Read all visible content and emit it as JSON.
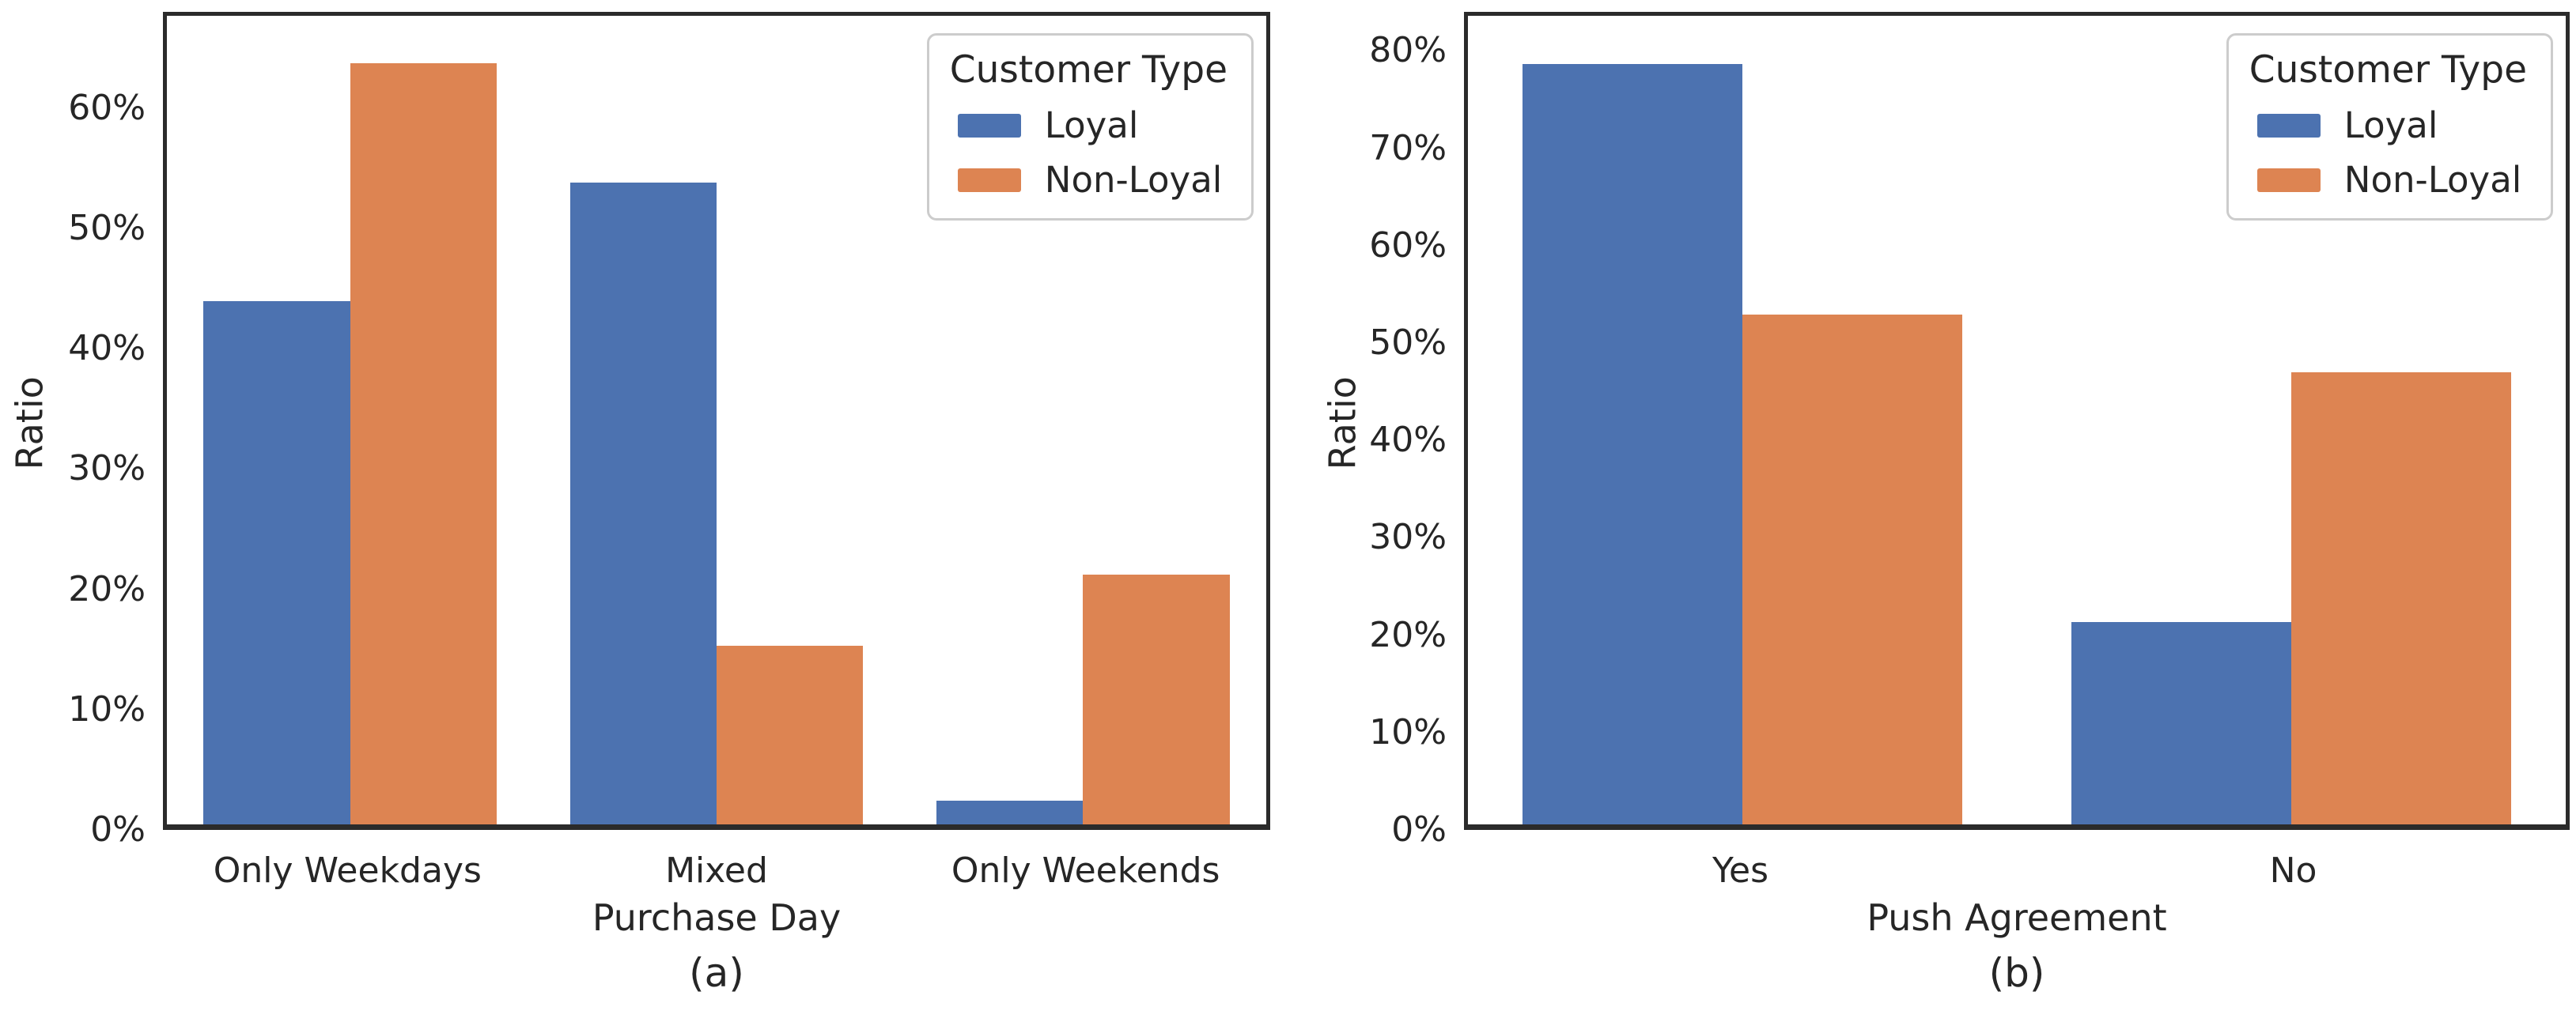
{
  "figure": {
    "background_color": "#ffffff",
    "text_color": "#262626",
    "spine_color": "#2b2b2b",
    "legend_border_color": "#cccccc"
  },
  "chart_data": [
    {
      "type": "bar",
      "panel": "a",
      "caption": "(a)",
      "xlabel": "Purchase Day",
      "ylabel": "Ratio",
      "legend_title": "Customer Type",
      "legend_position": "upper right",
      "grid": false,
      "ytick_suffix": "%",
      "categories": [
        "Only Weekdays",
        "Mixed",
        "Only Weekends"
      ],
      "series": [
        {
          "name": "Loyal",
          "color": "#4c72b0",
          "values": [
            44,
            54,
            2
          ]
        },
        {
          "name": "Non-Loyal",
          "color": "#dd8452",
          "values": [
            64,
            15,
            21
          ]
        }
      ],
      "yticks": [
        0,
        10,
        20,
        30,
        40,
        50,
        60
      ],
      "ylim": [
        0,
        68
      ]
    },
    {
      "type": "bar",
      "panel": "b",
      "caption": "(b)",
      "xlabel": "Push Agreement",
      "ylabel": "Ratio",
      "legend_title": "Customer Type",
      "legend_position": "upper right",
      "grid": false,
      "ytick_suffix": "%",
      "categories": [
        "Yes",
        "No"
      ],
      "series": [
        {
          "name": "Loyal",
          "color": "#4c72b0",
          "values": [
            79,
            21
          ]
        },
        {
          "name": "Non-Loyal",
          "color": "#dd8452",
          "values": [
            53,
            47
          ]
        }
      ],
      "yticks": [
        0,
        10,
        20,
        30,
        40,
        50,
        60,
        70,
        80
      ],
      "ylim": [
        0,
        84
      ]
    }
  ]
}
